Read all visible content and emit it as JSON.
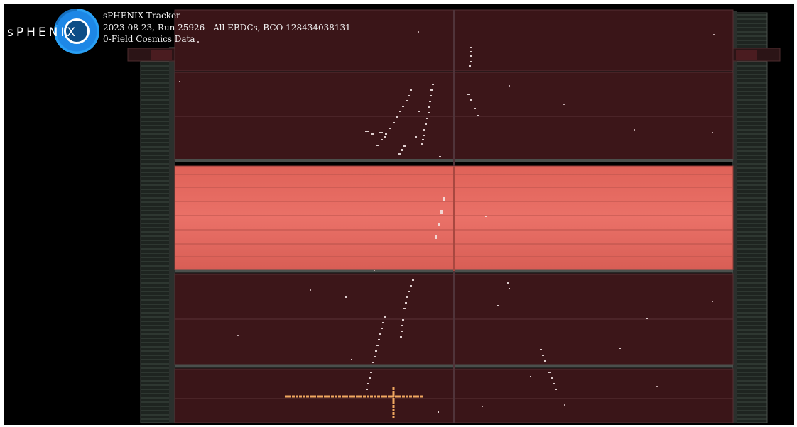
{
  "logo": {
    "text": "sPHENIX",
    "icon": "sphenix-logo-icon"
  },
  "header": {
    "line1": "sPHENIX Tracker",
    "line2": "2023-08-23, Run 25926 - All EBDCs, BCO 128434038131",
    "line3": "0-Field Cosmics Data"
  },
  "colors": {
    "background": "#000000",
    "tpc_dark": "#3a1518",
    "tpc_bright": "#e3675e",
    "hits": "#d8c8c8",
    "cross": "#f0a860",
    "outer_frame": "#2a2e2b"
  }
}
